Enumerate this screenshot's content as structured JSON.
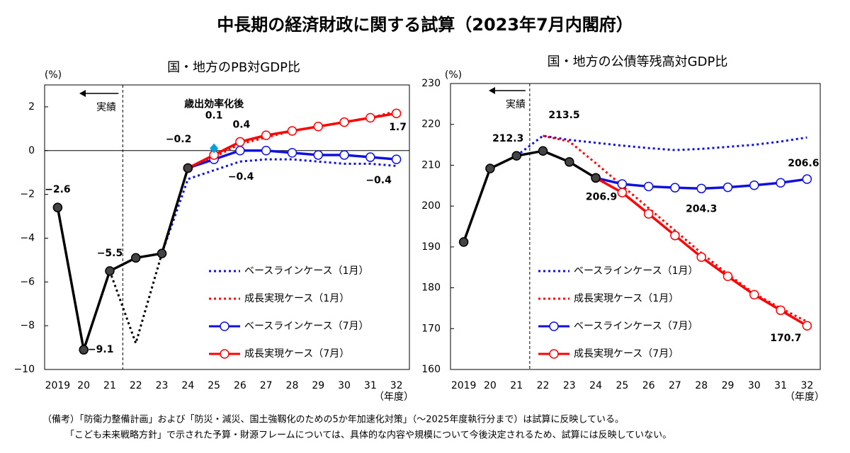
{
  "title": "中長期の経済財政に関する試算（2023年7月内閣府）",
  "notes": [
    "（備考）「防衛力整備計画」および「防災・減災、国土強靱化のための5か年加速化対策」（～2025年度執行分まで）は試算に反映している。",
    "「こども未来戦略方針」で示された予算・財源フレームについては、具体的な内容や規模について今後決定されるため、試算には反映していない。"
  ],
  "chart_data": [
    {
      "type": "line",
      "title": "国・地方のPB対GDP比",
      "y_unit": "(%)",
      "x_unit": "（年度）",
      "actual_label": "実績",
      "zero_line": true,
      "categories": [
        "2019",
        "20",
        "21",
        "22",
        "23",
        "24",
        "25",
        "26",
        "27",
        "28",
        "29",
        "30",
        "31",
        "32"
      ],
      "ylim": [
        -10,
        3
      ],
      "yticks": [
        2,
        0,
        {
          "value": -2,
          "label": "−2"
        },
        {
          "value": -4,
          "label": "−4"
        },
        {
          "value": -6,
          "label": "−6"
        },
        {
          "value": -8,
          "label": "−8"
        },
        {
          "value": -10,
          "label": "−10"
        }
      ],
      "series": [
        {
          "color": "#000000",
          "dash": true,
          "marker": "none",
          "values": [
            null,
            null,
            -5.5,
            -8.8,
            -4.7,
            null,
            null,
            null,
            null,
            null,
            null,
            null,
            null,
            null
          ]
        },
        {
          "name": "ベースラインケース（1月）",
          "color": "#1010e0",
          "dash": true,
          "marker": "none",
          "values": [
            null,
            null,
            null,
            null,
            -4.7,
            -1.3,
            -0.9,
            -0.5,
            -0.4,
            -0.4,
            -0.5,
            -0.6,
            -0.6,
            -0.7
          ]
        },
        {
          "name": "成長実現ケース（1月）",
          "color": "#ff0000",
          "dash": true,
          "marker": "none",
          "values": [
            null,
            null,
            null,
            null,
            -4.7,
            -0.8,
            -0.3,
            0.3,
            0.6,
            0.9,
            1.1,
            1.3,
            1.5,
            1.8
          ]
        },
        {
          "name": "ベースラインケース（7月）",
          "color": "#1010e0",
          "dash": false,
          "marker": "open",
          "values": [
            null,
            null,
            null,
            null,
            null,
            -0.8,
            -0.4,
            0.0,
            0.0,
            -0.1,
            -0.2,
            -0.2,
            -0.3,
            -0.4
          ],
          "value_labels": [
            null,
            null,
            null,
            null,
            null,
            null,
            "−0.4",
            null,
            null,
            null,
            null,
            null,
            null,
            "−0.4"
          ]
        },
        {
          "name": "成長実現ケース（7月）",
          "color": "#ff0000",
          "dash": false,
          "marker": "open",
          "values": [
            null,
            null,
            null,
            null,
            null,
            -0.8,
            -0.2,
            0.4,
            0.7,
            0.9,
            1.1,
            1.3,
            1.5,
            1.7
          ],
          "value_labels": [
            null,
            null,
            null,
            null,
            null,
            null,
            "−0.2",
            "0.4",
            null,
            null,
            null,
            null,
            null,
            "1.7"
          ]
        },
        {
          "color": "#000000",
          "dash": false,
          "marker": "filled",
          "values": [
            -2.6,
            -9.1,
            -5.5,
            -4.9,
            -4.7,
            -0.8,
            null,
            null,
            null,
            null,
            null,
            null,
            null,
            null
          ],
          "value_labels": [
            "−2.6",
            "−9.1",
            "−5.5",
            null,
            null,
            null,
            null,
            null,
            null,
            null,
            null,
            null,
            null,
            null
          ]
        },
        {
          "name": "歳出効率化後",
          "color": "#00a0e0",
          "dash": false,
          "marker": "diamond",
          "values": [
            null,
            null,
            null,
            null,
            null,
            null,
            0.1,
            null,
            null,
            null,
            null,
            null,
            null,
            null
          ],
          "value_labels": [
            null,
            null,
            null,
            null,
            null,
            null,
            "0.1",
            null,
            null,
            null,
            null,
            null,
            null,
            null
          ]
        }
      ]
    },
    {
      "type": "line",
      "title": "国・地方の公債等残高対GDP比",
      "y_unit": "(%)",
      "x_unit": "（年度）",
      "actual_label": "実績",
      "zero_line": false,
      "categories": [
        "2019",
        "20",
        "21",
        "22",
        "23",
        "24",
        "25",
        "26",
        "27",
        "28",
        "29",
        "30",
        "31",
        "32"
      ],
      "ylim": [
        160,
        230
      ],
      "yticks": [
        230,
        220,
        210,
        200,
        190,
        180,
        170,
        160
      ],
      "series": [
        {
          "name": "ベースラインケース（1月）",
          "color": "#1010e0",
          "dash": true,
          "marker": "none",
          "values": [
            null,
            null,
            212.3,
            217.2,
            216.2,
            215.5,
            214.8,
            214.2,
            213.7,
            214.0,
            214.5,
            215.0,
            215.8,
            216.8
          ]
        },
        {
          "name": "成長実現ケース（1月）",
          "color": "#ff0000",
          "dash": true,
          "marker": "none",
          "values": [
            null,
            null,
            null,
            217.2,
            215.8,
            210.5,
            205.0,
            199.5,
            194.0,
            188.5,
            183.3,
            178.6,
            175.0,
            171.7
          ]
        },
        {
          "name": "ベースラインケース（7月）",
          "color": "#1010e0",
          "dash": false,
          "marker": "open",
          "values": [
            null,
            null,
            null,
            null,
            null,
            206.9,
            205.4,
            204.8,
            204.5,
            204.3,
            204.6,
            205.1,
            205.7,
            206.6
          ],
          "value_labels": [
            null,
            null,
            null,
            null,
            null,
            null,
            null,
            null,
            null,
            "204.3",
            null,
            null,
            null,
            "206.6"
          ]
        },
        {
          "name": "成長実現ケース（7月）",
          "color": "#ff0000",
          "dash": false,
          "marker": "open",
          "values": [
            null,
            null,
            null,
            null,
            null,
            206.9,
            203.3,
            198.1,
            192.8,
            187.5,
            182.8,
            178.3,
            174.5,
            170.7
          ],
          "value_labels": [
            null,
            null,
            null,
            null,
            null,
            null,
            null,
            null,
            null,
            null,
            null,
            null,
            null,
            "170.7"
          ]
        },
        {
          "color": "#000000",
          "dash": false,
          "marker": "filled",
          "values": [
            191.2,
            209.2,
            212.3,
            213.5,
            210.8,
            206.9,
            null,
            null,
            null,
            null,
            null,
            null,
            null,
            null
          ],
          "value_labels": [
            null,
            null,
            "212.3",
            "213.5",
            null,
            "206.9",
            null,
            null,
            null,
            null,
            null,
            null,
            null,
            null
          ]
        }
      ]
    }
  ]
}
